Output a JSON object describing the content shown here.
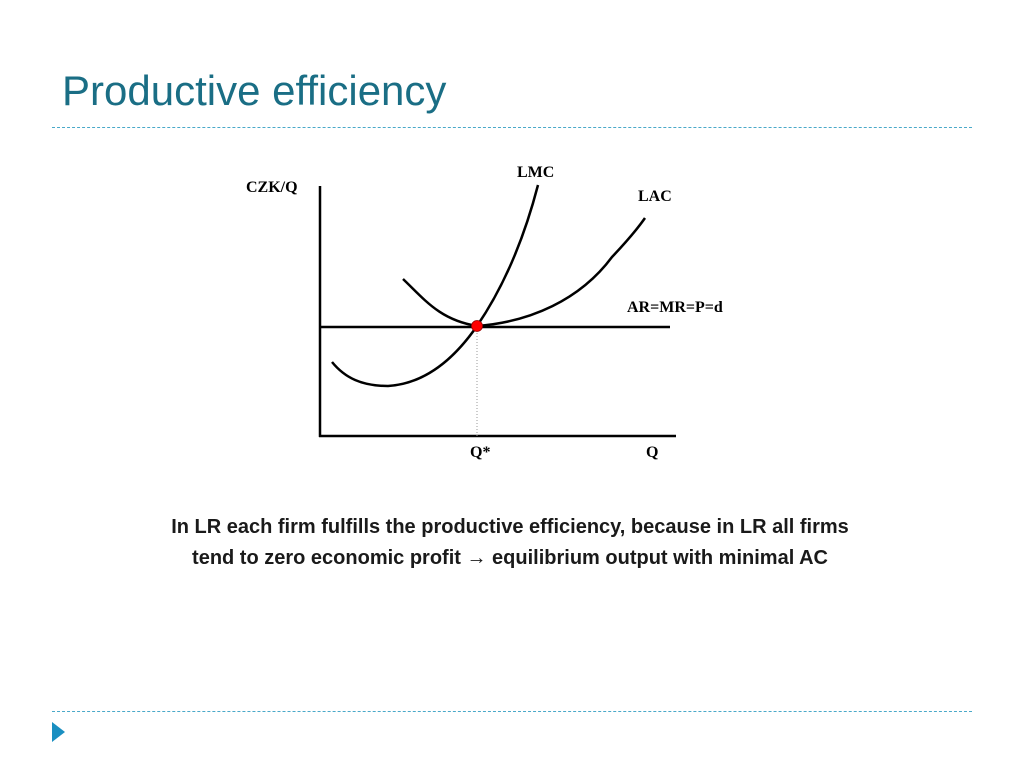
{
  "slide": {
    "title": "Productive efficiency",
    "caption_line1": "In LR each firm fulfills the productive efficiency, because in LR all firms",
    "caption_line2": "tend to zero economic profit → equilibrium output with minimal AC",
    "accent_color": "#1a6e85",
    "rule_color": "#4aa9c9",
    "bullet_color": "#1a8fc1",
    "bullet_icon": "play-triangle-icon"
  },
  "diagram": {
    "y_axis_label": "CZK/Q",
    "x_axis_label": "Q",
    "equilibrium_quantity_label": "Q*",
    "curves": {
      "lmc": "LMC",
      "lac": "LAC",
      "demand": "AR=MR=P=d"
    },
    "equilibrium_point_color": "#ff0000"
  }
}
